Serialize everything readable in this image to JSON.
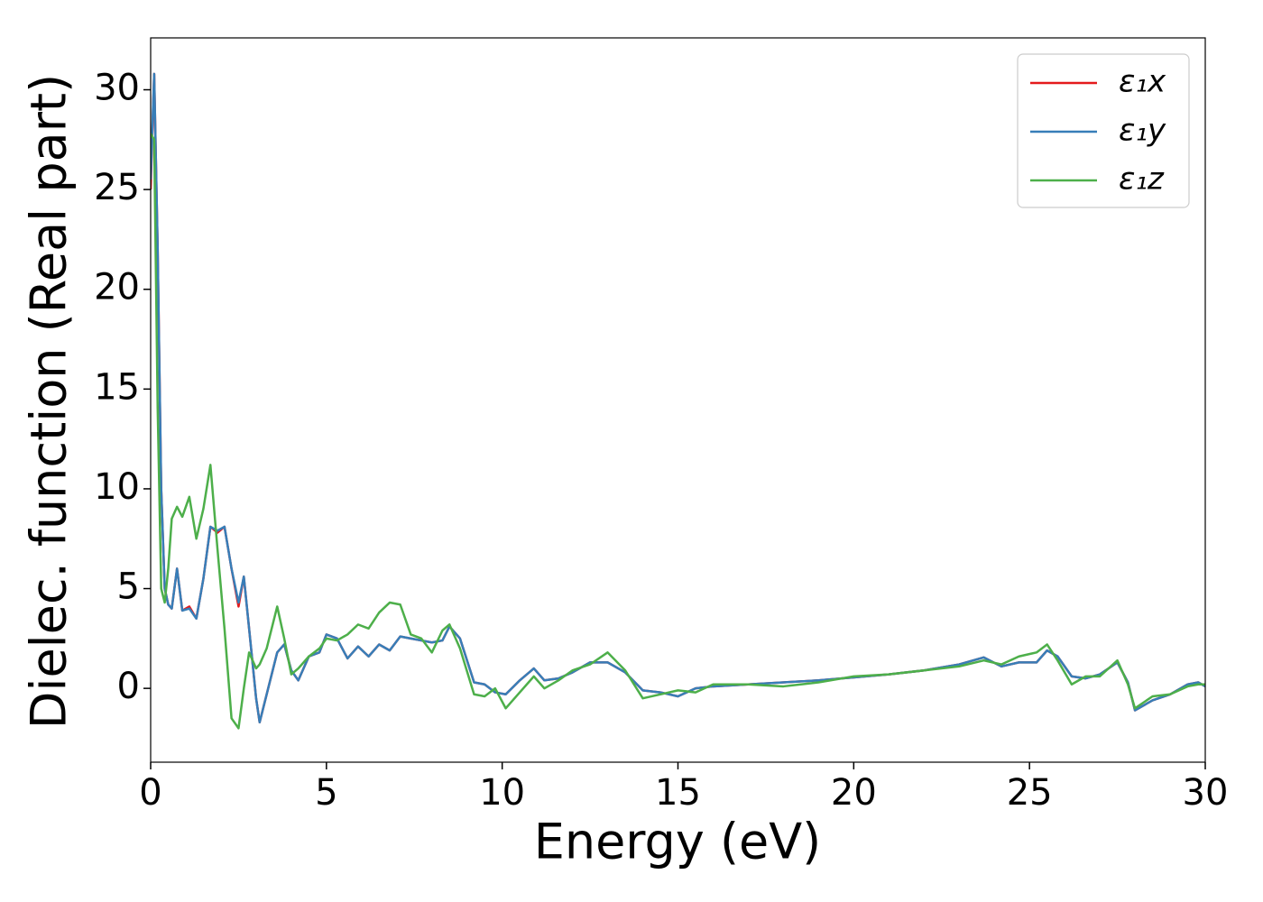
{
  "chart_data": {
    "type": "line",
    "xlabel": "Energy (eV)",
    "ylabel": "Dielec. function (Real part)",
    "xlim": [
      0,
      30
    ],
    "ylim": [
      -3.7,
      32.6
    ],
    "xticks": [
      0,
      5,
      10,
      15,
      20,
      25,
      30
    ],
    "yticks": [
      0,
      5,
      10,
      15,
      20,
      25,
      30
    ],
    "grid": false,
    "legend": "upper right",
    "x": [
      0,
      0.1,
      0.2,
      0.3,
      0.4,
      0.5,
      0.6,
      0.75,
      0.9,
      1.1,
      1.3,
      1.5,
      1.7,
      1.9,
      2.1,
      2.3,
      2.5,
      2.65,
      2.8,
      3.0,
      3.1,
      3.3,
      3.6,
      3.8,
      4.0,
      4.2,
      4.5,
      4.8,
      5.0,
      5.3,
      5.6,
      5.9,
      6.2,
      6.5,
      6.8,
      7.1,
      7.4,
      7.7,
      8.0,
      8.3,
      8.5,
      8.8,
      9.2,
      9.5,
      9.8,
      10.1,
      10.5,
      10.9,
      11.2,
      11.6,
      12.0,
      12.5,
      13.0,
      13.5,
      14.0,
      14.5,
      15.0,
      15.5,
      16.0,
      17.0,
      18.0,
      19.0,
      20.0,
      21.0,
      22.0,
      23.0,
      23.7,
      24.2,
      24.7,
      25.2,
      25.5,
      25.8,
      26.2,
      26.6,
      27.0,
      27.5,
      27.8,
      28.0,
      28.5,
      29.0,
      29.5,
      29.8,
      30.0
    ],
    "series": [
      {
        "name": "ε₁x",
        "color": "#e41a1c",
        "values": [
          25.0,
          30.8,
          22,
          10,
          5,
          4.2,
          4.0,
          6.0,
          3.9,
          4.1,
          3.5,
          5.5,
          8.1,
          7.8,
          8.1,
          6.0,
          4.1,
          5.6,
          3.0,
          -0.5,
          -1.7,
          -0.3,
          1.8,
          2.2,
          0.9,
          0.4,
          1.6,
          1.8,
          2.7,
          2.5,
          1.5,
          2.1,
          1.6,
          2.2,
          1.9,
          2.6,
          2.5,
          2.4,
          2.3,
          2.4,
          3.1,
          2.5,
          0.3,
          0.2,
          -0.2,
          -0.3,
          0.4,
          1.0,
          0.4,
          0.5,
          0.8,
          1.3,
          1.3,
          0.8,
          -0.1,
          -0.2,
          -0.4,
          0.0,
          0.1,
          0.2,
          0.3,
          0.4,
          0.55,
          0.7,
          0.9,
          1.2,
          1.55,
          1.1,
          1.3,
          1.3,
          1.9,
          1.6,
          0.6,
          0.5,
          0.7,
          1.3,
          0.3,
          -1.1,
          -0.6,
          -0.3,
          0.2,
          0.3,
          0.1
        ]
      },
      {
        "name": "ε₁y",
        "color": "#377eb8",
        "values": [
          25.5,
          30.8,
          22,
          10,
          5,
          4.2,
          4.0,
          6.0,
          3.9,
          4.0,
          3.5,
          5.5,
          8.1,
          7.9,
          8.1,
          6.0,
          4.3,
          5.6,
          3.0,
          -0.5,
          -1.7,
          -0.3,
          1.8,
          2.2,
          0.9,
          0.4,
          1.6,
          1.8,
          2.7,
          2.5,
          1.5,
          2.1,
          1.6,
          2.2,
          1.9,
          2.6,
          2.5,
          2.4,
          2.3,
          2.4,
          3.1,
          2.5,
          0.3,
          0.2,
          -0.2,
          -0.3,
          0.4,
          1.0,
          0.4,
          0.5,
          0.8,
          1.3,
          1.3,
          0.8,
          -0.1,
          -0.2,
          -0.4,
          0.0,
          0.1,
          0.2,
          0.3,
          0.4,
          0.55,
          0.7,
          0.9,
          1.2,
          1.55,
          1.1,
          1.3,
          1.3,
          1.9,
          1.6,
          0.6,
          0.5,
          0.7,
          1.3,
          0.3,
          -1.1,
          -0.6,
          -0.3,
          0.2,
          0.3,
          0.1
        ]
      },
      {
        "name": "ε₁z",
        "color": "#4daf4a",
        "values": [
          27.8,
          27.5,
          14,
          5,
          4.3,
          6.0,
          8.5,
          9.1,
          8.6,
          9.6,
          7.5,
          9.0,
          11.2,
          7.0,
          3.0,
          -1.5,
          -2.0,
          0.0,
          1.8,
          1.0,
          1.2,
          2.0,
          4.1,
          2.5,
          0.7,
          1.0,
          1.6,
          2.0,
          2.5,
          2.4,
          2.7,
          3.2,
          3.0,
          3.8,
          4.3,
          4.2,
          2.7,
          2.5,
          1.8,
          2.9,
          3.2,
          2.0,
          -0.3,
          -0.4,
          0.0,
          -1.0,
          -0.2,
          0.6,
          0.0,
          0.4,
          0.9,
          1.2,
          1.8,
          0.9,
          -0.5,
          -0.3,
          -0.1,
          -0.2,
          0.2,
          0.2,
          0.1,
          0.3,
          0.6,
          0.7,
          0.9,
          1.1,
          1.4,
          1.2,
          1.6,
          1.8,
          2.2,
          1.4,
          0.2,
          0.6,
          0.6,
          1.4,
          0.2,
          -1.0,
          -0.4,
          -0.3,
          0.1,
          0.2,
          0.2
        ]
      }
    ]
  }
}
